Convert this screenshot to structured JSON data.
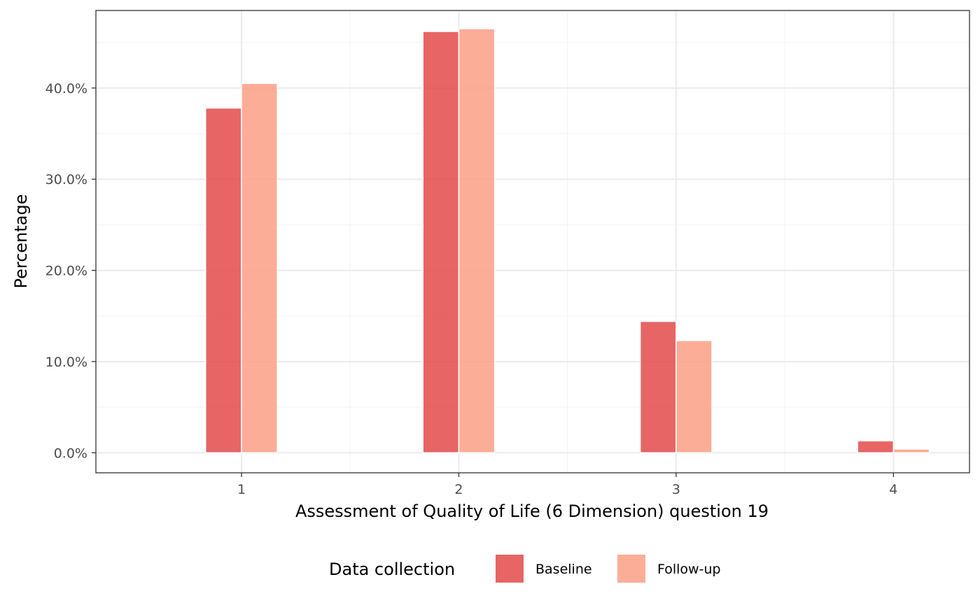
{
  "chart_data": {
    "type": "bar",
    "categories": [
      "1",
      "2",
      "3",
      "4"
    ],
    "series": [
      {
        "name": "Baseline",
        "values": [
          0.378,
          0.462,
          0.144,
          0.013
        ],
        "color": "#e34a4a"
      },
      {
        "name": "Follow-up",
        "values": [
          0.405,
          0.465,
          0.123,
          0.004
        ],
        "color": "#fc9f86"
      }
    ],
    "title": "",
    "xlabel": "Assessment of Quality of Life (6 Dimension) question 19",
    "ylabel": "Percentage",
    "ylim": [
      -0.022,
      0.485
    ],
    "yticks": [
      0.0,
      0.1,
      0.2,
      0.3,
      0.4
    ],
    "ytick_labels": [
      "0.0%",
      "10.0%",
      "20.0%",
      "30.0%",
      "40.0%"
    ],
    "xlim": [
      0.33,
      4.35
    ],
    "grid": true,
    "legend": {
      "title": "Data collection",
      "position": "bottom"
    },
    "colors": {
      "grid_major": "#ebebeb",
      "grid_minor": "#f3f3f3",
      "panel_border": "#333333",
      "bar_stroke": "#ffffff"
    }
  }
}
